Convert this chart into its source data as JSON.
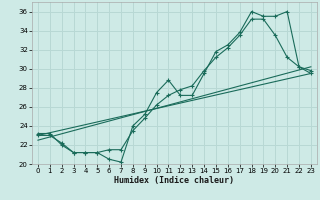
{
  "xlabel": "Humidex (Indice chaleur)",
  "xlim": [
    -0.5,
    23.5
  ],
  "ylim": [
    20,
    37
  ],
  "xticks": [
    0,
    1,
    2,
    3,
    4,
    5,
    6,
    7,
    8,
    9,
    10,
    11,
    12,
    13,
    14,
    15,
    16,
    17,
    18,
    19,
    20,
    21,
    22,
    23
  ],
  "yticks": [
    20,
    22,
    24,
    26,
    28,
    30,
    32,
    34,
    36
  ],
  "bg_color": "#ceeae6",
  "grid_color": "#b8d8d4",
  "line_color": "#1a6b5a",
  "line1_x": [
    0,
    1,
    2,
    3,
    4,
    5,
    6,
    7,
    8,
    9,
    10,
    11,
    12,
    13,
    14,
    15,
    16,
    17,
    18,
    19,
    20,
    21,
    22,
    23
  ],
  "line1_y": [
    23.0,
    23.0,
    22.2,
    21.2,
    21.2,
    21.2,
    20.5,
    20.2,
    24.0,
    25.2,
    27.5,
    28.8,
    27.2,
    27.2,
    29.5,
    31.8,
    32.5,
    33.8,
    36.0,
    35.5,
    35.5,
    36.0,
    30.2,
    29.5
  ],
  "line2_x": [
    0,
    1,
    2,
    3,
    4,
    5,
    6,
    7,
    8,
    9,
    10,
    11,
    12,
    13,
    14,
    15,
    16,
    17,
    18,
    19,
    20,
    21,
    22,
    23
  ],
  "line2_y": [
    23.2,
    23.2,
    22.0,
    21.2,
    21.2,
    21.2,
    21.5,
    21.5,
    23.5,
    24.8,
    26.2,
    27.2,
    27.8,
    28.2,
    29.8,
    31.2,
    32.2,
    33.5,
    35.2,
    35.2,
    33.5,
    31.2,
    30.2,
    29.8
  ],
  "line3_x": [
    0,
    23
  ],
  "line3_y": [
    23.0,
    29.5
  ],
  "line4_x": [
    0,
    23
  ],
  "line4_y": [
    22.5,
    30.2
  ]
}
